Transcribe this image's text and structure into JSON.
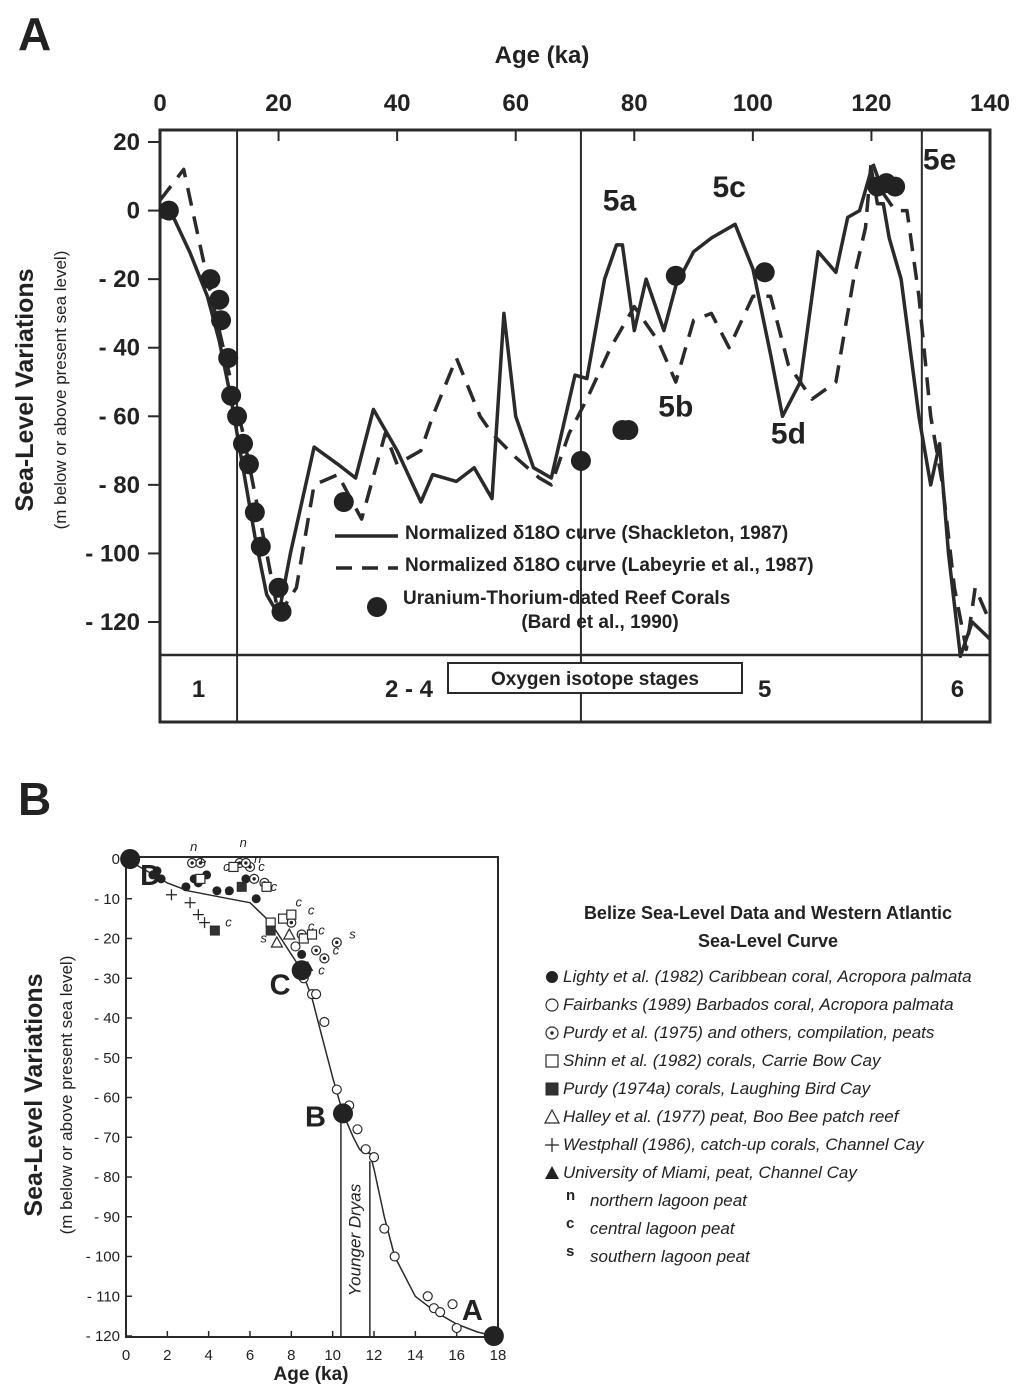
{
  "colors": {
    "ink": "#2a2a2a",
    "paper": "#ffffff"
  },
  "chart_data": [
    {
      "panel_label": "A",
      "type": "line",
      "xlabel": "Age (ka)",
      "ylabel": "Sea-Level Variations",
      "ylabel_sub": "(m below or above present sea level)",
      "xlim": [
        0,
        140
      ],
      "ylim": [
        -130,
        20
      ],
      "x_ticks": [
        {
          "value": 0,
          "label": "0"
        },
        {
          "value": 20,
          "label": "20"
        },
        {
          "value": 40,
          "label": "40"
        },
        {
          "value": 60,
          "label": "60"
        },
        {
          "value": 80,
          "label": "80"
        },
        {
          "value": 100,
          "label": "100"
        },
        {
          "value": 120,
          "label": "120"
        },
        {
          "value": 140,
          "label": "140"
        }
      ],
      "y_ticks": [
        {
          "value": 20,
          "label": "20"
        },
        {
          "value": 0,
          "label": "0"
        },
        {
          "value": -20,
          "label": "- 20"
        },
        {
          "value": -40,
          "label": "- 40"
        },
        {
          "value": -60,
          "label": "- 60"
        },
        {
          "value": -80,
          "label": "- 80"
        },
        {
          "value": -100,
          "label": "- 100"
        },
        {
          "value": -120,
          "label": "- 120"
        }
      ],
      "series": [
        {
          "name": "Normalized δ18O curve (Shackleton, 1987)",
          "style": "solid",
          "x": [
            0,
            2,
            5,
            8,
            10,
            12,
            14,
            16,
            18,
            20,
            22,
            26,
            30,
            33,
            36,
            40,
            44,
            46,
            50,
            53,
            56,
            58,
            60,
            63,
            66,
            70,
            72,
            75,
            77,
            78,
            80,
            82,
            85,
            87,
            90,
            93,
            97,
            100,
            103,
            105,
            108,
            111,
            114,
            116,
            118,
            120,
            121,
            122,
            123,
            125,
            128,
            130,
            131.5,
            133,
            135,
            137,
            140
          ],
          "y": [
            -2,
            -1,
            -12,
            -25,
            -38,
            -55,
            -75,
            -95,
            -112,
            -118,
            -100,
            -69,
            -74,
            -78,
            -58,
            -70,
            -85,
            -77,
            -79,
            -75,
            -84,
            -30,
            -60,
            -75,
            -78,
            -48,
            -49,
            -20,
            -10,
            -10,
            -35,
            -20,
            -35,
            -22,
            -12,
            -8,
            -4,
            -17,
            -42,
            -60,
            -50,
            -12,
            -18,
            -2,
            0,
            12,
            2,
            2,
            -8,
            -20,
            -60,
            -80,
            -68,
            -100,
            -130,
            -120,
            -125
          ]
        },
        {
          "name": "Normalized δ18O curve (Labeyrie et al., 1987)",
          "style": "dashed",
          "x": [
            0,
            4,
            8,
            10,
            14,
            18,
            20,
            23,
            26,
            30,
            34,
            38,
            40,
            44,
            46,
            50,
            54,
            56,
            60,
            64,
            66,
            69,
            72,
            76,
            80,
            84,
            87,
            90,
            93,
            96,
            100,
            103,
            106,
            110,
            114,
            117,
            119,
            120,
            122,
            124,
            126,
            128,
            130,
            132,
            134,
            136,
            137.5,
            140
          ],
          "y": [
            3,
            12,
            -20,
            -35,
            -65,
            -100,
            -118,
            -110,
            -80,
            -77,
            -90,
            -65,
            -74,
            -70,
            -60,
            -43,
            -60,
            -65,
            -72,
            -78,
            -80,
            -65,
            -55,
            -40,
            -28,
            -38,
            -50,
            -32,
            -30,
            -40,
            -25,
            -25,
            -45,
            -55,
            -50,
            -20,
            -5,
            15,
            5,
            0,
            0,
            -25,
            -60,
            -80,
            -110,
            -128,
            -110,
            -120
          ]
        },
        {
          "name": "Uranium-Thorium-dated Reef Corals",
          "name_sub": "(Bard et al., 1990)",
          "style": "points",
          "x": [
            1.5,
            8.5,
            10,
            10.3,
            11.5,
            12,
            13,
            14,
            15,
            16,
            17,
            20,
            20.5,
            31,
            71,
            78,
            79,
            87,
            102,
            121,
            122.5,
            124
          ],
          "y": [
            0,
            -20,
            -26,
            -32,
            -43,
            -54,
            -60,
            -68,
            -74,
            -88,
            -98,
            -110,
            -117,
            -85,
            -73,
            -64,
            -64,
            -19,
            -18,
            7,
            8,
            7
          ]
        }
      ],
      "annotations": [
        {
          "text": "5a",
          "x": 77.5,
          "y": 0
        },
        {
          "text": "5c",
          "x": 96,
          "y": 4
        },
        {
          "text": "5b",
          "x": 87,
          "y": -60
        },
        {
          "text": "5d",
          "x": 106,
          "y": -68
        },
        {
          "text": "5e",
          "x": 131.5,
          "y": 12
        }
      ],
      "stage_boundaries": [
        13,
        71,
        128.5
      ],
      "stages": [
        {
          "label": "1",
          "x": 6.5
        },
        {
          "label": "2 - 4",
          "x": 42
        },
        {
          "label": "5",
          "x": 102
        },
        {
          "label": "6",
          "x": 134.5
        }
      ],
      "stage_title": "Oxygen isotope stages",
      "legend_position": "lower-center"
    },
    {
      "panel_label": "B",
      "type": "scatter",
      "title": "Belize Sea-Level Data and Western Atlantic",
      "title_line2": "Sea-Level Curve",
      "xlabel": "Age (ka)",
      "ylabel": "Sea-Level Variations",
      "ylabel_sub": "(m below or above present sea level)",
      "xlim": [
        0,
        18
      ],
      "ylim": [
        -122,
        0
      ],
      "x_ticks": [
        "0",
        "2",
        "4",
        "6",
        "8",
        "10",
        "12",
        "14",
        "16",
        "18"
      ],
      "y_ticks": [
        {
          "value": 0,
          "label": "0"
        },
        {
          "value": -10,
          "label": "- 10"
        },
        {
          "value": -20,
          "label": "- 20"
        },
        {
          "value": -30,
          "label": "- 30"
        },
        {
          "value": -40,
          "label": "- 40"
        },
        {
          "value": -50,
          "label": "- 50"
        },
        {
          "value": -60,
          "label": "- 60"
        },
        {
          "value": -70,
          "label": "- 70"
        },
        {
          "value": -80,
          "label": "- 80"
        },
        {
          "value": -90,
          "label": "- 90"
        },
        {
          "value": -100,
          "label": "- 100"
        },
        {
          "value": -110,
          "label": "- 110"
        },
        {
          "value": -120,
          "label": "- 120"
        }
      ],
      "curve": {
        "x": [
          0,
          1,
          2,
          3,
          4,
          5,
          6,
          7,
          7.5,
          8,
          8.5,
          9,
          9.5,
          10,
          10.5,
          11,
          11.3,
          11.5,
          11.8,
          12,
          12.5,
          13,
          14,
          15,
          16,
          17,
          17.8
        ],
        "y": [
          0,
          -3,
          -6,
          -8,
          -9,
          -10,
          -11,
          -16,
          -20,
          -24,
          -28,
          -35,
          -45,
          -55,
          -64,
          -70,
          -73,
          -74,
          -74,
          -78,
          -90,
          -100,
          -110,
          -114,
          -117,
          -119,
          -120
        ]
      },
      "reference_points": [
        {
          "label": "D",
          "x": 0.2,
          "y": 0
        },
        {
          "label": "C",
          "x": 8.5,
          "y": -28
        },
        {
          "label": "B",
          "x": 10.5,
          "y": -64
        },
        {
          "label": "A",
          "x": 17.8,
          "y": -120
        }
      ],
      "younger_dryas": {
        "label": "Younger Dryas",
        "x_start": 10.4,
        "x_end": 11.8
      },
      "series": [
        {
          "name": "Lighty et al. (1982) Caribbean coral, Acropora palmata",
          "marker": "filled-circle",
          "x": [
            1.3,
            1.5,
            1.7,
            2.9,
            3.3,
            3.5,
            3.9,
            4.4,
            5.0,
            5.8,
            6.3,
            7.0,
            8.5
          ],
          "y": [
            -4,
            -3,
            -5,
            -7,
            -5,
            -6,
            -4,
            -8,
            -8,
            -5,
            -10,
            -18,
            -24
          ]
        },
        {
          "name": "Fairbanks (1989) Barbados coral, Acropora palmata",
          "marker": "open-circle",
          "x": [
            8.2,
            8.6,
            9.0,
            9.2,
            9.6,
            10.2,
            10.8,
            11.2,
            11.6,
            12.0,
            12.5,
            13.0,
            14.6,
            14.9,
            15.2,
            15.8,
            16.0
          ],
          "y": [
            -22,
            -30,
            -34,
            -34,
            -41,
            -58,
            -62,
            -68,
            -73,
            -75,
            -93,
            -100,
            -110,
            -113,
            -114,
            -112,
            -118
          ]
        },
        {
          "name": "Purdy et al. (1975) and others, compilation, peats",
          "marker": "dotted-circle",
          "x": [
            3.2,
            3.6,
            5.5,
            6.0,
            6.2,
            5.8,
            6.7,
            8.0,
            8.5,
            9.2,
            9.6,
            10.2
          ],
          "y": [
            -1,
            -1,
            -1,
            -2,
            -5,
            -1,
            -6,
            -16,
            -19,
            -23,
            -25,
            -21
          ]
        },
        {
          "name": "Shinn et al. (1982) corals, Carrie Bow Cay",
          "marker": "open-square",
          "x": [
            3.6,
            5.2,
            6.8,
            7.0,
            7.6,
            8.0,
            8.6,
            9.0
          ],
          "y": [
            -5,
            -2,
            -7,
            -16,
            -15,
            -14,
            -20,
            -19
          ]
        },
        {
          "name": "Purdy (1974a)  corals, Laughing Bird Cay",
          "marker": "filled-square",
          "x": [
            4.3,
            5.6,
            7.0
          ],
          "y": [
            -18,
            -7,
            -18
          ]
        },
        {
          "name": "Halley et al. (1977) peat, Boo Bee patch reef",
          "marker": "open-triangle",
          "x": [
            7.3,
            7.9
          ],
          "y": [
            -21,
            -19
          ]
        },
        {
          "name": "Westphall (1986), catch-up corals, Channel Cay",
          "marker": "plus",
          "x": [
            2.2,
            3.1,
            3.5,
            3.8
          ],
          "y": [
            -9,
            -11,
            -14,
            -16
          ]
        },
        {
          "name": "University of Miami, peat, Channel Cay",
          "marker": "filled-triangle",
          "x": [
            8.8
          ],
          "y": [
            -27
          ]
        }
      ],
      "letter_markers": [
        {
          "text": "n",
          "x": 3.1,
          "y": 2
        },
        {
          "text": "n",
          "x": 5.5,
          "y": 3
        },
        {
          "text": "n",
          "x": 6.2,
          "y": -1
        },
        {
          "text": "c",
          "x": 3.6,
          "y": -1
        },
        {
          "text": "c",
          "x": 4.7,
          "y": -3
        },
        {
          "text": "c",
          "x": 6.4,
          "y": -3
        },
        {
          "text": "c",
          "x": 7.0,
          "y": -8
        },
        {
          "text": "c",
          "x": 8.2,
          "y": -12
        },
        {
          "text": "c",
          "x": 8.8,
          "y": -14
        },
        {
          "text": "c",
          "x": 8.8,
          "y": -18
        },
        {
          "text": "c",
          "x": 9.3,
          "y": -19
        },
        {
          "text": "c",
          "x": 10.0,
          "y": -24
        },
        {
          "text": "c",
          "x": 4.8,
          "y": -17
        },
        {
          "text": "c",
          "x": 9.3,
          "y": -29
        },
        {
          "text": "s",
          "x": 4.8,
          "y": -9
        },
        {
          "text": "s",
          "x": 6.5,
          "y": -21
        },
        {
          "text": "s",
          "x": 10.8,
          "y": -20
        }
      ],
      "legend_extra": [
        {
          "symbol": "n",
          "label": "northern lagoon peat"
        },
        {
          "symbol": "c",
          "label": "central lagoon peat"
        },
        {
          "symbol": "s",
          "label": "southern lagoon peat"
        }
      ],
      "legend_position": "right"
    }
  ]
}
